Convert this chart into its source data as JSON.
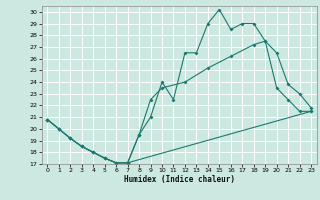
{
  "xlabel": "Humidex (Indice chaleur)",
  "bg_color": "#cde8e0",
  "grid_color": "#ffffff",
  "line_color": "#1a7a6e",
  "xlim": [
    -0.5,
    23.5
  ],
  "ylim": [
    17,
    30.5
  ],
  "yticks": [
    17,
    18,
    19,
    20,
    21,
    22,
    23,
    24,
    25,
    26,
    27,
    28,
    29,
    30
  ],
  "xticks": [
    0,
    1,
    2,
    3,
    4,
    5,
    6,
    7,
    8,
    9,
    10,
    11,
    12,
    13,
    14,
    15,
    16,
    17,
    18,
    19,
    20,
    21,
    22,
    23
  ],
  "line1_x": [
    0,
    1,
    2,
    3,
    4,
    5,
    6,
    7,
    8,
    9,
    10,
    11,
    12,
    13,
    14,
    15,
    16,
    17,
    18,
    19,
    20,
    21,
    22,
    23
  ],
  "line1_y": [
    20.8,
    20.0,
    19.2,
    18.5,
    18.0,
    17.5,
    17.1,
    17.1,
    19.5,
    21.0,
    24.0,
    22.5,
    26.5,
    26.5,
    29.0,
    30.2,
    28.5,
    29.0,
    29.0,
    27.5,
    23.5,
    22.5,
    21.5,
    21.5
  ],
  "line2_x": [
    0,
    1,
    2,
    3,
    4,
    5,
    6,
    7,
    8,
    9,
    10,
    12,
    14,
    16,
    18,
    19,
    20,
    21,
    22,
    23
  ],
  "line2_y": [
    20.8,
    20.0,
    19.2,
    18.5,
    18.0,
    17.5,
    17.1,
    17.1,
    19.5,
    22.5,
    23.5,
    24.0,
    25.2,
    26.2,
    27.2,
    27.5,
    26.5,
    23.8,
    23.0,
    21.8
  ],
  "line3_x": [
    0,
    1,
    2,
    3,
    4,
    5,
    6,
    7,
    23
  ],
  "line3_y": [
    20.8,
    20.0,
    19.2,
    18.5,
    18.0,
    17.5,
    17.1,
    17.1,
    21.5
  ]
}
